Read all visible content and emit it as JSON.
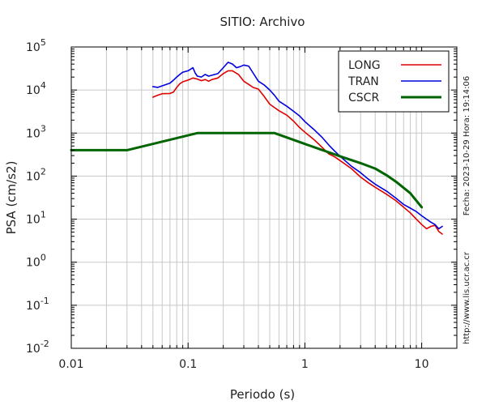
{
  "chart_data": {
    "type": "line",
    "title": "SITIO: Archivo",
    "xlabel": "Periodo (s)",
    "ylabel": "PSA (cm/s2)",
    "x_scale": "log",
    "y_scale": "log",
    "xlim": [
      0.01,
      20
    ],
    "ylim": [
      0.01,
      100000
    ],
    "x_ticks": [
      {
        "value": 0.01,
        "label": "0.01"
      },
      {
        "value": 0.1,
        "label": "0.1"
      },
      {
        "value": 1,
        "label": "1"
      },
      {
        "value": 10,
        "label": "10"
      }
    ],
    "y_ticks": [
      {
        "value": 0.01,
        "base": "10",
        "exp": "-2"
      },
      {
        "value": 0.1,
        "base": "10",
        "exp": "-1"
      },
      {
        "value": 1,
        "base": "10",
        "exp": "0"
      },
      {
        "value": 10,
        "base": "10",
        "exp": "1"
      },
      {
        "value": 100,
        "base": "10",
        "exp": "2"
      },
      {
        "value": 1000,
        "base": "10",
        "exp": "3"
      },
      {
        "value": 10000,
        "base": "10",
        "exp": "4"
      },
      {
        "value": 100000,
        "base": "10",
        "exp": "5"
      }
    ],
    "grid": true,
    "legend_position": "top-right",
    "series": [
      {
        "name": "LONG",
        "color": "#e00000",
        "x": [
          0.05,
          0.055,
          0.06,
          0.07,
          0.075,
          0.08,
          0.085,
          0.09,
          0.1,
          0.11,
          0.12,
          0.13,
          0.14,
          0.15,
          0.16,
          0.18,
          0.2,
          0.22,
          0.24,
          0.27,
          0.3,
          0.33,
          0.36,
          0.4,
          0.45,
          0.5,
          0.55,
          0.6,
          0.7,
          0.8,
          0.9,
          1.0,
          1.2,
          1.4,
          1.6,
          1.8,
          2.0,
          2.5,
          3.0,
          3.5,
          4.0,
          5.0,
          6.0,
          7.0,
          8.0,
          9.0,
          10.0,
          11.0,
          12.0,
          13.0,
          14.0,
          15.0
        ],
        "y": [
          6800,
          7600,
          8200,
          8300,
          9000,
          11500,
          14000,
          15500,
          17000,
          19000,
          18000,
          16500,
          17500,
          16000,
          17500,
          19000,
          24000,
          28000,
          28000,
          23000,
          16000,
          13500,
          11500,
          10500,
          7000,
          4700,
          3900,
          3300,
          2600,
          1900,
          1350,
          1050,
          700,
          470,
          330,
          280,
          230,
          150,
          95,
          70,
          55,
          38,
          27,
          19,
          14,
          10,
          7.5,
          6.0,
          6.8,
          7.2,
          5.2,
          4.5
        ]
      },
      {
        "name": "TRAN",
        "color": "#0000e0",
        "x": [
          0.05,
          0.055,
          0.06,
          0.07,
          0.075,
          0.08,
          0.085,
          0.09,
          0.1,
          0.11,
          0.115,
          0.12,
          0.13,
          0.14,
          0.15,
          0.16,
          0.18,
          0.2,
          0.22,
          0.24,
          0.26,
          0.28,
          0.3,
          0.33,
          0.36,
          0.4,
          0.45,
          0.5,
          0.55,
          0.6,
          0.7,
          0.8,
          0.9,
          1.0,
          1.2,
          1.4,
          1.6,
          1.8,
          2.0,
          2.5,
          3.0,
          3.5,
          4.0,
          5.0,
          6.0,
          7.0,
          8.0,
          9.0,
          10.0,
          11.0,
          12.0,
          13.0,
          14.0,
          15.0
        ],
        "y": [
          12000,
          11500,
          12500,
          14500,
          17000,
          20000,
          23000,
          26000,
          28000,
          33000,
          25000,
          21000,
          20000,
          23000,
          21000,
          22000,
          24000,
          33000,
          44000,
          40000,
          33000,
          35000,
          38000,
          36000,
          25000,
          16000,
          13000,
          10000,
          7500,
          5500,
          4200,
          3200,
          2500,
          1850,
          1200,
          800,
          530,
          380,
          290,
          170,
          120,
          85,
          65,
          45,
          31,
          22,
          18,
          15,
          12,
          10,
          8.5,
          7.5,
          6.0,
          6.8
        ]
      },
      {
        "name": "CSCR",
        "color": "#006400",
        "x": [
          0.01,
          0.03,
          0.12,
          0.55,
          1.0,
          2.0,
          3.0,
          4.0,
          5.0,
          6.0,
          8.0,
          10.0
        ],
        "y": [
          400,
          400,
          1000,
          1000,
          560,
          290,
          200,
          150,
          105,
          75,
          40,
          19
        ]
      }
    ],
    "side_labels": {
      "datetime": "Fecha: 2023-10-29  Hora: 19:14:06",
      "url": "http://www.lis.ucr.ac.cr"
    }
  }
}
